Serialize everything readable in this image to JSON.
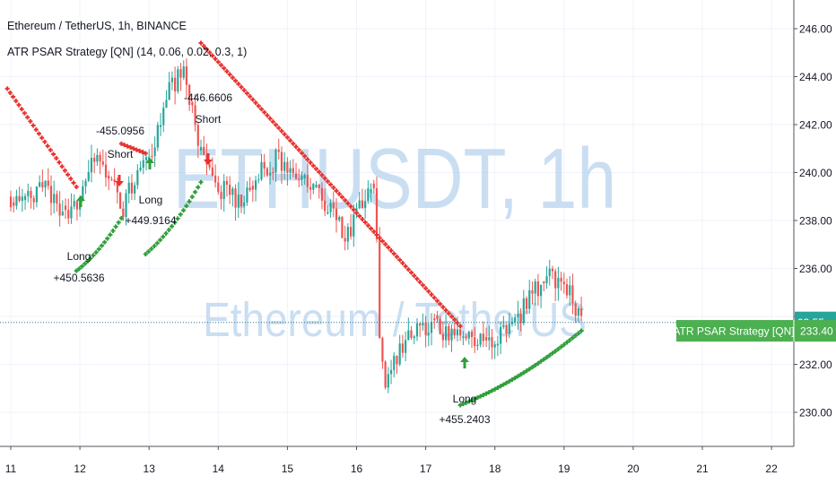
{
  "legend": {
    "title": "Ethereum / TetherUS, 1h, BINANCE",
    "strategy": "ATR PSAR Strategy [QN] (14, 0.06, 0.02, 0.3, 1)"
  },
  "watermark": {
    "symbol": "ETHUSDT, 1h",
    "name": "Ethereum / TetherUS"
  },
  "colors": {
    "up": "#26a69a",
    "down": "#ef5350",
    "psar_up": "#2e9e3a",
    "psar_down": "#e8322e",
    "badge": "#4caf50",
    "price_line": "#2b7a8c",
    "countdown_bg": "#26a69a",
    "watermark": "#b9d4ee",
    "axis_text": "#131722",
    "grid": "#f0f3fa"
  },
  "price_axis": {
    "ticks": [
      "230.00",
      "232.00",
      "234.00",
      "236.00",
      "238.00",
      "240.00",
      "242.00",
      "244.00",
      "246.00"
    ],
    "current_price": 233.75,
    "countdown_label": "03:55"
  },
  "time_axis": {
    "ticks": [
      "11",
      "12",
      "13",
      "14",
      "15",
      "16",
      "17",
      "18",
      "19",
      "20",
      "21",
      "22"
    ]
  },
  "strategy_badge": {
    "label": "ATR PSAR Strategy [QN]",
    "value": "233.40",
    "price": 233.4
  },
  "chart_data": {
    "type": "candlestick",
    "symbol": "ETHUSDT",
    "interval": "1h",
    "x_unit": "day of month",
    "y_range": [
      228.5,
      246.8
    ],
    "x_range": [
      10.95,
      22.3
    ],
    "ohlc_keypoints": [
      {
        "day": 11.0,
        "close": 239.0
      },
      {
        "day": 11.5,
        "close": 239.3
      },
      {
        "day": 11.75,
        "close": 238.5
      },
      {
        "day": 11.85,
        "close": 238.0
      },
      {
        "day": 12.05,
        "close": 239.6
      },
      {
        "day": 12.25,
        "close": 240.6
      },
      {
        "day": 12.45,
        "close": 239.8
      },
      {
        "day": 12.6,
        "close": 238.4
      },
      {
        "day": 12.85,
        "close": 240.1
      },
      {
        "day": 13.05,
        "close": 241.0
      },
      {
        "day": 13.3,
        "close": 243.6
      },
      {
        "day": 13.5,
        "close": 244.2
      },
      {
        "day": 13.7,
        "close": 241.3
      },
      {
        "day": 13.95,
        "close": 239.4
      },
      {
        "day": 14.3,
        "close": 238.9
      },
      {
        "day": 14.5,
        "close": 239.7
      },
      {
        "day": 14.85,
        "close": 240.6
      },
      {
        "day": 15.25,
        "close": 239.5
      },
      {
        "day": 15.6,
        "close": 238.7
      },
      {
        "day": 15.85,
        "close": 237.4
      },
      {
        "day": 16.1,
        "close": 238.8
      },
      {
        "day": 16.28,
        "close": 239.2
      },
      {
        "day": 16.32,
        "close": 233.2
      },
      {
        "day": 16.4,
        "close": 231.0
      },
      {
        "day": 16.7,
        "close": 233.0
      },
      {
        "day": 17.0,
        "close": 233.6
      },
      {
        "day": 17.5,
        "close": 233.2
      },
      {
        "day": 17.9,
        "close": 232.9
      },
      {
        "day": 18.3,
        "close": 233.8
      },
      {
        "day": 18.5,
        "close": 234.8
      },
      {
        "day": 18.75,
        "close": 235.7
      },
      {
        "day": 19.0,
        "close": 235.4
      },
      {
        "day": 19.25,
        "close": 233.8
      }
    ],
    "psar_segments": [
      {
        "direction": "down",
        "from_day": 10.95,
        "to_day": 11.95,
        "from": 243.5,
        "to": 239.4
      },
      {
        "direction": "up",
        "from_day": 11.95,
        "to_day": 12.6,
        "from": 235.9,
        "to": 238.1
      },
      {
        "direction": "down",
        "from_day": 12.6,
        "to_day": 12.95,
        "from": 241.2,
        "to": 240.8
      },
      {
        "direction": "up",
        "from_day": 12.95,
        "to_day": 13.75,
        "from": 236.6,
        "to": 239.6
      },
      {
        "direction": "down",
        "from_day": 13.75,
        "to_day": 17.5,
        "from": 245.4,
        "to": 233.6
      },
      {
        "direction": "up",
        "from_day": 17.5,
        "to_day": 19.25,
        "from": 230.3,
        "to": 233.4
      }
    ],
    "signals": [
      {
        "side": "Long",
        "pnl": "+450.5636",
        "day": 11.95
      },
      {
        "side": "Short",
        "pnl": "-455.0956",
        "day": 12.6
      },
      {
        "side": "Long",
        "pnl": "+449.9164",
        "day": 12.95
      },
      {
        "side": "Short",
        "pnl": "-446.6606",
        "day": 13.75
      },
      {
        "side": "Long",
        "pnl": "+455.2403",
        "day": 17.5
      }
    ]
  }
}
